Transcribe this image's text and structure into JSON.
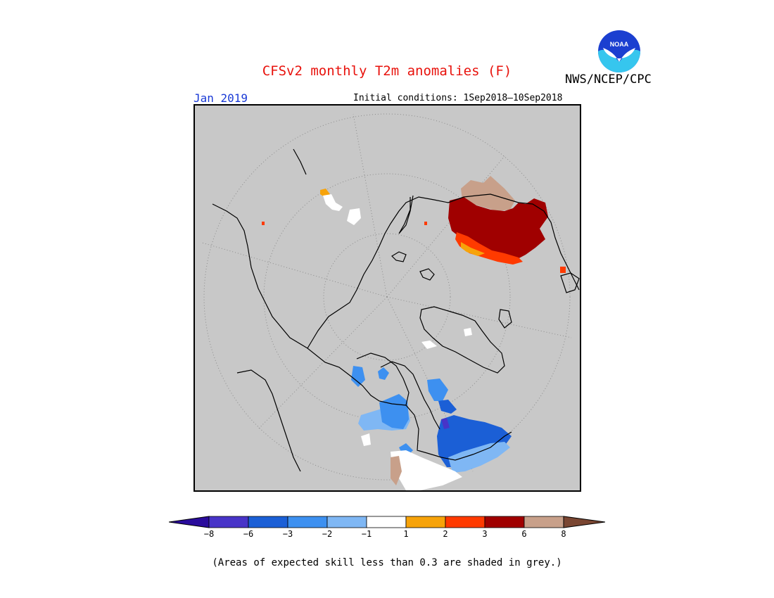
{
  "title": "CFSv2 monthly T2m anomalies (F)",
  "org": "NWS/NCEP/CPC",
  "logo": {
    "label": "NOAA",
    "icon": "noaa-logo-icon"
  },
  "valid_month": "Jan 2019",
  "initial_conditions": "Initial conditions: 1Sep2018–10Sep2018",
  "colorbar": {
    "colors": [
      "#4834c8",
      "#1b5fd6",
      "#3d90f0",
      "#7fb7f4",
      "#ffffff",
      "#f7a30a",
      "#ff3a00",
      "#a00000",
      "#c8a08a"
    ],
    "low_arrow_color": "#2a0c9c",
    "high_arrow_color": "#7a4632",
    "ticks": [
      "−8",
      "−6",
      "−3",
      "−2",
      "−1",
      "1",
      "2",
      "3",
      "6",
      "8"
    ]
  },
  "map_colors": {
    "background": "#c8c8c8",
    "outline": "#000000"
  },
  "footnote": "(Areas of expected skill less than 0.3 are shaded in grey.)"
}
